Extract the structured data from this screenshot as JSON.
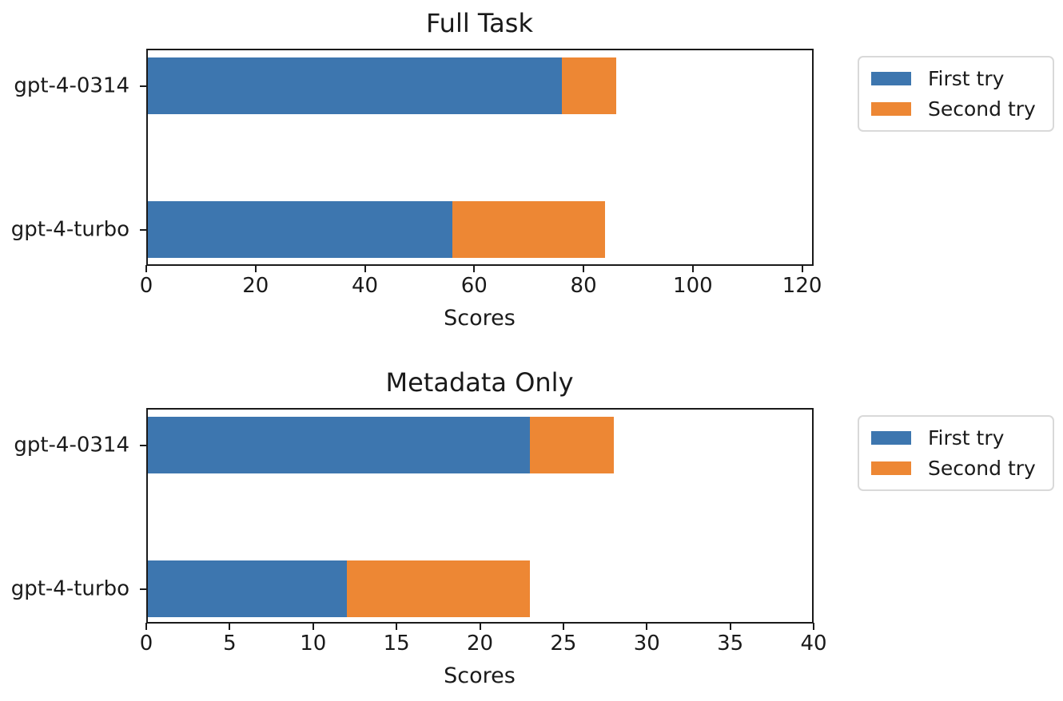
{
  "figure": {
    "background": "#ffffff",
    "text_color": "#1a1a1a",
    "spine_color": "#1a1a1a"
  },
  "legend": {
    "items": [
      {
        "label": "First try",
        "color": "#3d76af"
      },
      {
        "label": "Second try",
        "color": "#ed8734"
      }
    ]
  },
  "chart_data": [
    {
      "type": "bar",
      "orientation": "horizontal",
      "stacked": true,
      "title": "Full Task",
      "xlabel": "Scores",
      "categories": [
        "gpt-4-0314",
        "gpt-4-turbo"
      ],
      "series": [
        {
          "name": "First try",
          "color": "#3d76af",
          "values": [
            76,
            56
          ]
        },
        {
          "name": "Second try",
          "color": "#ed8734",
          "values": [
            10,
            28
          ]
        }
      ],
      "totals": [
        86,
        84
      ],
      "xlim": [
        0,
        122.1
      ],
      "xticks": [
        0,
        20,
        40,
        60,
        80,
        100,
        120
      ],
      "grid": false,
      "legend_position": "outside-upper-right"
    },
    {
      "type": "bar",
      "orientation": "horizontal",
      "stacked": true,
      "title": "Metadata Only",
      "xlabel": "Scores",
      "categories": [
        "gpt-4-0314",
        "gpt-4-turbo"
      ],
      "series": [
        {
          "name": "First try",
          "color": "#3d76af",
          "values": [
            23,
            12
          ]
        },
        {
          "name": "Second try",
          "color": "#ed8734",
          "values": [
            5,
            11
          ]
        }
      ],
      "totals": [
        28,
        23
      ],
      "xlim": [
        0,
        40
      ],
      "xticks": [
        0,
        5,
        10,
        15,
        20,
        25,
        30,
        35,
        40
      ],
      "grid": false,
      "legend_position": "outside-upper-right"
    }
  ]
}
